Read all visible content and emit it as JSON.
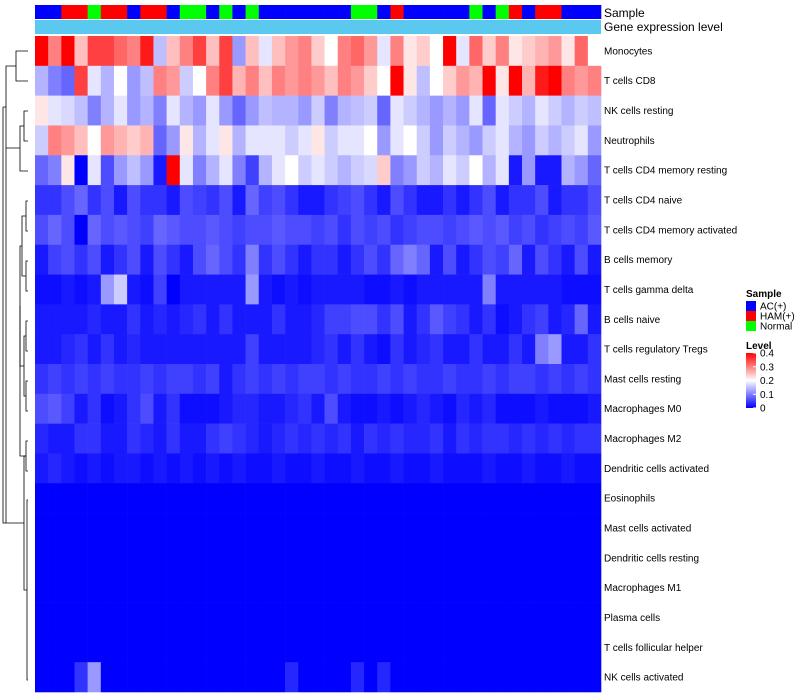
{
  "chart_data": {
    "type": "heatmap",
    "annotations": [
      {
        "label": "Sample"
      },
      {
        "label": "Gene expression level"
      }
    ],
    "sample_groups": [
      "AC",
      "AC",
      "HAM",
      "HAM",
      "Normal",
      "HAM",
      "HAM",
      "AC",
      "HAM",
      "HAM",
      "AC",
      "Normal",
      "Normal",
      "AC",
      "Normal",
      "AC",
      "Normal",
      "AC",
      "AC",
      "AC",
      "AC",
      "AC",
      "AC",
      "AC",
      "Normal",
      "Normal",
      "AC",
      "HAM",
      "AC",
      "AC",
      "AC",
      "AC",
      "AC",
      "Normal",
      "AC",
      "Normal",
      "HAM",
      "AC",
      "HAM",
      "HAM",
      "AC",
      "AC",
      "AC"
    ],
    "rows": [
      {
        "label": "Monocytes",
        "values": [
          0.4,
          0.3,
          0.4,
          0.25,
          0.35,
          0.35,
          0.32,
          0.3,
          0.38,
          0.15,
          0.25,
          0.3,
          0.35,
          0.25,
          0.35,
          0.12,
          0.25,
          0.18,
          0.25,
          0.28,
          0.3,
          0.24,
          0.2,
          0.3,
          0.32,
          0.28,
          0.18,
          0.3,
          0.22,
          0.24,
          0.2,
          0.4,
          0.18,
          0.32,
          0.24,
          0.3,
          0.22,
          0.24,
          0.26,
          0.28,
          0.22,
          0.32,
          0.2
        ]
      },
      {
        "label": "T cells CD8",
        "values": [
          0.14,
          0.1,
          0.08,
          0.35,
          0.18,
          0.14,
          0.2,
          0.12,
          0.15,
          0.3,
          0.28,
          0.16,
          0.2,
          0.3,
          0.35,
          0.26,
          0.3,
          0.25,
          0.3,
          0.28,
          0.3,
          0.28,
          0.25,
          0.3,
          0.28,
          0.24,
          0.2,
          0.4,
          0.22,
          0.15,
          0.2,
          0.24,
          0.28,
          0.26,
          0.4,
          0.22,
          0.4,
          0.26,
          0.38,
          0.4,
          0.3,
          0.28,
          0.3
        ]
      },
      {
        "label": "NK cells resting",
        "values": [
          0.22,
          0.18,
          0.17,
          0.15,
          0.1,
          0.14,
          0.18,
          0.12,
          0.14,
          0.1,
          0.18,
          0.14,
          0.12,
          0.18,
          0.12,
          0.08,
          0.12,
          0.15,
          0.14,
          0.14,
          0.12,
          0.16,
          0.1,
          0.14,
          0.15,
          0.16,
          0.08,
          0.18,
          0.16,
          0.14,
          0.12,
          0.14,
          0.12,
          0.18,
          0.08,
          0.18,
          0.16,
          0.14,
          0.18,
          0.16,
          0.14,
          0.16,
          0.15
        ]
      },
      {
        "label": "Neutrophils",
        "values": [
          0.16,
          0.3,
          0.28,
          0.25,
          0.2,
          0.28,
          0.26,
          0.24,
          0.26,
          0.08,
          0.12,
          0.22,
          0.14,
          0.18,
          0.22,
          0.14,
          0.18,
          0.18,
          0.18,
          0.16,
          0.18,
          0.22,
          0.16,
          0.18,
          0.18,
          0.2,
          0.12,
          0.18,
          0.2,
          0.16,
          0.12,
          0.16,
          0.14,
          0.12,
          0.16,
          0.18,
          0.14,
          0.12,
          0.16,
          0.14,
          0.16,
          0.18,
          0.12
        ]
      },
      {
        "label": "T cells CD4 memory resting",
        "values": [
          0.08,
          0.1,
          0.22,
          0.0,
          0.18,
          0.06,
          0.12,
          0.15,
          0.12,
          0.02,
          0.4,
          0.18,
          0.1,
          0.14,
          0.18,
          0.1,
          0.05,
          0.14,
          0.18,
          0.2,
          0.16,
          0.18,
          0.16,
          0.14,
          0.16,
          0.17,
          0.24,
          0.1,
          0.12,
          0.16,
          0.14,
          0.18,
          0.16,
          0.2,
          0.14,
          0.18,
          0.02,
          0.12,
          0.02,
          0.02,
          0.14,
          0.12,
          0.08
        ]
      },
      {
        "label": "T cells CD4 naive",
        "values": [
          0.04,
          0.04,
          0.06,
          0.08,
          0.04,
          0.06,
          0.02,
          0.06,
          0.04,
          0.04,
          0.02,
          0.06,
          0.05,
          0.04,
          0.06,
          0.02,
          0.08,
          0.05,
          0.06,
          0.04,
          0.02,
          0.02,
          0.04,
          0.05,
          0.06,
          0.04,
          0.02,
          0.06,
          0.04,
          0.02,
          0.02,
          0.04,
          0.02,
          0.04,
          0.06,
          0.02,
          0.04,
          0.04,
          0.06,
          0.02,
          0.04,
          0.04,
          0.06
        ]
      },
      {
        "label": "T cells CD4 memory activated",
        "values": [
          0.06,
          0.08,
          0.06,
          0.0,
          0.08,
          0.06,
          0.07,
          0.06,
          0.05,
          0.08,
          0.07,
          0.06,
          0.06,
          0.07,
          0.06,
          0.05,
          0.06,
          0.06,
          0.07,
          0.06,
          0.06,
          0.05,
          0.06,
          0.04,
          0.06,
          0.05,
          0.06,
          0.04,
          0.05,
          0.06,
          0.06,
          0.05,
          0.06,
          0.07,
          0.06,
          0.07,
          0.05,
          0.06,
          0.04,
          0.05,
          0.06,
          0.05,
          0.07
        ]
      },
      {
        "label": "B cells memory",
        "values": [
          0.02,
          0.05,
          0.06,
          0.04,
          0.06,
          0.02,
          0.04,
          0.06,
          0.02,
          0.06,
          0.04,
          0.02,
          0.06,
          0.08,
          0.06,
          0.04,
          0.1,
          0.04,
          0.06,
          0.04,
          0.02,
          0.04,
          0.04,
          0.02,
          0.04,
          0.06,
          0.04,
          0.08,
          0.1,
          0.08,
          0.02,
          0.06,
          0.02,
          0.04,
          0.06,
          0.05,
          0.08,
          0.02,
          0.06,
          0.04,
          0.02,
          0.06,
          0.02
        ]
      },
      {
        "label": "T cells gamma delta",
        "values": [
          0.01,
          0.01,
          0.02,
          0.01,
          0.02,
          0.12,
          0.16,
          0.02,
          0.01,
          0.05,
          0.0,
          0.02,
          0.02,
          0.02,
          0.02,
          0.02,
          0.12,
          0.02,
          0.01,
          0.02,
          0.01,
          0.02,
          0.02,
          0.02,
          0.02,
          0.01,
          0.01,
          0.02,
          0.01,
          0.02,
          0.02,
          0.02,
          0.02,
          0.02,
          0.1,
          0.02,
          0.02,
          0.02,
          0.02,
          0.02,
          0.01,
          0.01,
          0.01
        ]
      },
      {
        "label": "B cells naive",
        "values": [
          0.02,
          0.02,
          0.02,
          0.02,
          0.03,
          0.02,
          0.02,
          0.04,
          0.02,
          0.03,
          0.02,
          0.03,
          0.04,
          0.02,
          0.04,
          0.02,
          0.02,
          0.02,
          0.04,
          0.02,
          0.02,
          0.03,
          0.05,
          0.05,
          0.06,
          0.06,
          0.04,
          0.06,
          0.02,
          0.04,
          0.07,
          0.05,
          0.04,
          0.02,
          0.04,
          0.01,
          0.02,
          0.04,
          0.05,
          0.02,
          0.03,
          0.08,
          0.02
        ]
      },
      {
        "label": "T cells regulatory  Tregs",
        "values": [
          0.02,
          0.02,
          0.03,
          0.04,
          0.02,
          0.04,
          0.02,
          0.03,
          0.02,
          0.02,
          0.02,
          0.02,
          0.02,
          0.02,
          0.02,
          0.02,
          0.05,
          0.02,
          0.02,
          0.02,
          0.02,
          0.03,
          0.04,
          0.02,
          0.04,
          0.02,
          0.01,
          0.04,
          0.02,
          0.03,
          0.04,
          0.02,
          0.02,
          0.04,
          0.02,
          0.02,
          0.04,
          0.02,
          0.1,
          0.12,
          0.02,
          0.02,
          0.04
        ]
      },
      {
        "label": "Mast cells resting",
        "values": [
          0.04,
          0.05,
          0.04,
          0.05,
          0.04,
          0.05,
          0.04,
          0.04,
          0.05,
          0.04,
          0.05,
          0.05,
          0.04,
          0.05,
          0.02,
          0.04,
          0.05,
          0.04,
          0.05,
          0.04,
          0.05,
          0.05,
          0.04,
          0.05,
          0.04,
          0.04,
          0.05,
          0.04,
          0.05,
          0.04,
          0.04,
          0.05,
          0.04,
          0.04,
          0.05,
          0.04,
          0.05,
          0.05,
          0.04,
          0.05,
          0.04,
          0.05,
          0.04
        ]
      },
      {
        "label": "Macrophages M0",
        "values": [
          0.06,
          0.07,
          0.05,
          0.02,
          0.04,
          0.01,
          0.02,
          0.04,
          0.06,
          0.02,
          0.04,
          0.01,
          0.01,
          0.01,
          0.02,
          0.03,
          0.03,
          0.02,
          0.02,
          0.03,
          0.04,
          0.02,
          0.06,
          0.02,
          0.01,
          0.01,
          0.02,
          0.01,
          0.02,
          0.03,
          0.02,
          0.01,
          0.03,
          0.02,
          0.03,
          0.01,
          0.01,
          0.01,
          0.02,
          0.01,
          0.01,
          0.01,
          0.02
        ]
      },
      {
        "label": "Macrophages M2",
        "values": [
          0.03,
          0.02,
          0.02,
          0.04,
          0.04,
          0.02,
          0.02,
          0.04,
          0.03,
          0.02,
          0.04,
          0.02,
          0.02,
          0.04,
          0.05,
          0.04,
          0.03,
          0.02,
          0.03,
          0.04,
          0.03,
          0.04,
          0.03,
          0.04,
          0.02,
          0.04,
          0.03,
          0.04,
          0.03,
          0.03,
          0.04,
          0.02,
          0.04,
          0.03,
          0.04,
          0.04,
          0.03,
          0.04,
          0.03,
          0.04,
          0.03,
          0.04,
          0.04
        ]
      },
      {
        "label": "Dendritic cells activated",
        "values": [
          0.02,
          0.03,
          0.02,
          0.01,
          0.02,
          0.01,
          0.02,
          0.02,
          0.01,
          0.02,
          0.01,
          0.02,
          0.01,
          0.02,
          0.01,
          0.02,
          0.01,
          0.01,
          0.02,
          0.01,
          0.01,
          0.02,
          0.01,
          0.01,
          0.02,
          0.01,
          0.01,
          0.02,
          0.01,
          0.01,
          0.02,
          0.01,
          0.01,
          0.01,
          0.02,
          0.01,
          0.01,
          0.02,
          0.01,
          0.01,
          0.02,
          0.01,
          0.01
        ]
      },
      {
        "label": "Eosinophils",
        "values": [
          0,
          0,
          0,
          0,
          0,
          0,
          0,
          0,
          0,
          0,
          0,
          0,
          0,
          0,
          0,
          0,
          0,
          0,
          0,
          0,
          0,
          0,
          0,
          0,
          0,
          0,
          0,
          0,
          0,
          0,
          0,
          0,
          0,
          0,
          0,
          0,
          0,
          0,
          0,
          0,
          0,
          0,
          0
        ]
      },
      {
        "label": "Mast cells activated",
        "values": [
          0,
          0,
          0,
          0,
          0,
          0,
          0,
          0,
          0,
          0,
          0,
          0,
          0,
          0,
          0,
          0,
          0,
          0,
          0,
          0,
          0,
          0,
          0,
          0,
          0,
          0,
          0,
          0,
          0,
          0,
          0,
          0,
          0,
          0,
          0,
          0,
          0,
          0,
          0,
          0,
          0,
          0,
          0
        ]
      },
      {
        "label": "Dendritic cells resting",
        "values": [
          0,
          0,
          0,
          0,
          0,
          0,
          0,
          0,
          0,
          0,
          0,
          0,
          0,
          0,
          0,
          0,
          0,
          0,
          0,
          0,
          0,
          0,
          0,
          0,
          0,
          0,
          0,
          0,
          0,
          0,
          0,
          0,
          0,
          0,
          0,
          0,
          0,
          0,
          0,
          0,
          0,
          0,
          0
        ]
      },
      {
        "label": "Macrophages M1",
        "values": [
          0,
          0,
          0,
          0,
          0,
          0,
          0,
          0,
          0,
          0,
          0,
          0,
          0,
          0,
          0,
          0,
          0,
          0,
          0,
          0,
          0,
          0,
          0,
          0,
          0,
          0,
          0,
          0,
          0,
          0,
          0,
          0,
          0,
          0,
          0,
          0,
          0,
          0,
          0,
          0,
          0,
          0,
          0
        ]
      },
      {
        "label": "Plasma cells",
        "values": [
          0,
          0,
          0,
          0,
          0,
          0,
          0,
          0,
          0,
          0,
          0,
          0,
          0,
          0,
          0,
          0,
          0,
          0,
          0,
          0,
          0,
          0,
          0,
          0,
          0,
          0,
          0,
          0,
          0,
          0,
          0,
          0,
          0,
          0,
          0,
          0,
          0,
          0,
          0,
          0,
          0,
          0,
          0
        ]
      },
      {
        "label": "T cells follicular helper",
        "values": [
          0,
          0,
          0,
          0,
          0,
          0,
          0,
          0,
          0,
          0,
          0,
          0,
          0,
          0,
          0,
          0,
          0,
          0,
          0,
          0,
          0,
          0,
          0,
          0,
          0,
          0,
          0,
          0,
          0,
          0,
          0,
          0,
          0,
          0,
          0,
          0,
          0,
          0,
          0,
          0,
          0,
          0,
          0
        ]
      },
      {
        "label": "NK cells activated",
        "values": [
          0,
          0,
          0,
          0.04,
          0.12,
          0,
          0,
          0,
          0,
          0,
          0,
          0,
          0,
          0,
          0,
          0,
          0,
          0,
          0,
          0.03,
          0,
          0,
          0,
          0,
          0.03,
          0,
          0.03,
          0,
          0,
          0,
          0,
          0,
          0,
          0,
          0,
          0,
          0,
          0,
          0,
          0,
          0,
          0,
          0
        ]
      }
    ],
    "color_scale": {
      "min": 0,
      "max": 0.4,
      "low": "#0000ff",
      "mid": "#ffffff",
      "high": "#ff0000",
      "mid_value": 0.2
    },
    "legends": [
      {
        "title": "Sample",
        "items": [
          {
            "label": "AC(+)",
            "key": "AC",
            "color": "#0000ff"
          },
          {
            "label": "HAM(+)",
            "key": "HAM",
            "color": "#ff0000"
          },
          {
            "label": "Normal",
            "key": "Normal",
            "color": "#00ff00"
          }
        ]
      },
      {
        "title": "Level",
        "ticks": [
          {
            "label": "0.4",
            "value": 0.4
          },
          {
            "label": "0.3",
            "value": 0.3
          },
          {
            "label": "0.2",
            "value": 0.2
          },
          {
            "label": "0.1",
            "value": 0.1
          },
          {
            "label": "0",
            "value": 0
          }
        ]
      }
    ],
    "gene_expression_color": "#5bc8ef",
    "dendrogram": "row-clustering"
  }
}
